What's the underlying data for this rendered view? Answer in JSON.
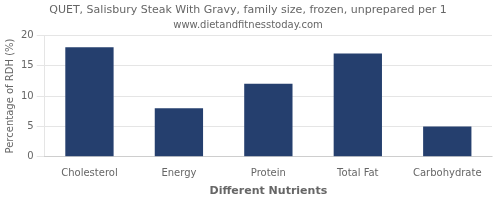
{
  "chart_data": {
    "type": "bar",
    "title": "QUET, Salisbury Steak With Gravy, family size, frozen, unprepared per 1",
    "subtitle": "www.dietandfitnesstoday.com",
    "xlabel": "Different Nutrients",
    "ylabel": "Percentage of RDH (%)",
    "categories": [
      "Cholesterol",
      "Energy",
      "Protein",
      "Total Fat",
      "Carbohydrate"
    ],
    "values": [
      18,
      8,
      12,
      17,
      5
    ],
    "color": "#253f6e",
    "ylim": [
      0,
      20
    ],
    "yticks": [
      0,
      5,
      10,
      15,
      20
    ],
    "grid": true
  }
}
